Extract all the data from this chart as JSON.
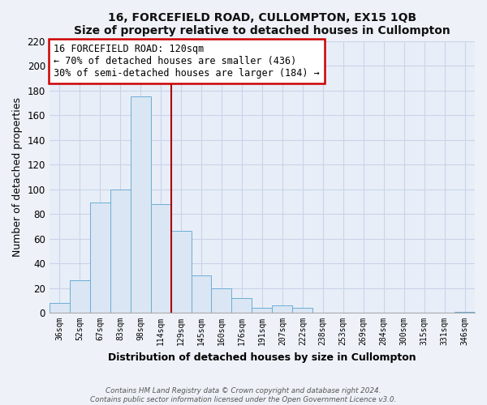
{
  "title": "16, FORCEFIELD ROAD, CULLOMPTON, EX15 1QB",
  "subtitle": "Size of property relative to detached houses in Cullompton",
  "xlabel": "Distribution of detached houses by size in Cullompton",
  "ylabel": "Number of detached properties",
  "bar_labels": [
    "36sqm",
    "52sqm",
    "67sqm",
    "83sqm",
    "98sqm",
    "114sqm",
    "129sqm",
    "145sqm",
    "160sqm",
    "176sqm",
    "191sqm",
    "207sqm",
    "222sqm",
    "238sqm",
    "253sqm",
    "269sqm",
    "284sqm",
    "300sqm",
    "315sqm",
    "331sqm",
    "346sqm"
  ],
  "bar_values": [
    8,
    26,
    89,
    100,
    175,
    88,
    66,
    30,
    20,
    12,
    4,
    6,
    4,
    0,
    0,
    0,
    0,
    0,
    0,
    0,
    1
  ],
  "bar_color": "#dae6f3",
  "bar_edge_color": "#6baed6",
  "vline_x": 5.5,
  "vline_color": "#aa0000",
  "ylim": [
    0,
    220
  ],
  "yticks": [
    0,
    20,
    40,
    60,
    80,
    100,
    120,
    140,
    160,
    180,
    200,
    220
  ],
  "annotation_title": "16 FORCEFIELD ROAD: 120sqm",
  "annotation_line1": "← 70% of detached houses are smaller (436)",
  "annotation_line2": "30% of semi-detached houses are larger (184) →",
  "annotation_box_color": "#ffffff",
  "annotation_box_edge": "#cc0000",
  "footer_line1": "Contains HM Land Registry data © Crown copyright and database right 2024.",
  "footer_line2": "Contains public sector information licensed under the Open Government Licence v3.0.",
  "bg_color": "#eef2f8",
  "plot_bg_color": "#e8eef8",
  "grid_color": "#c8d4e8"
}
